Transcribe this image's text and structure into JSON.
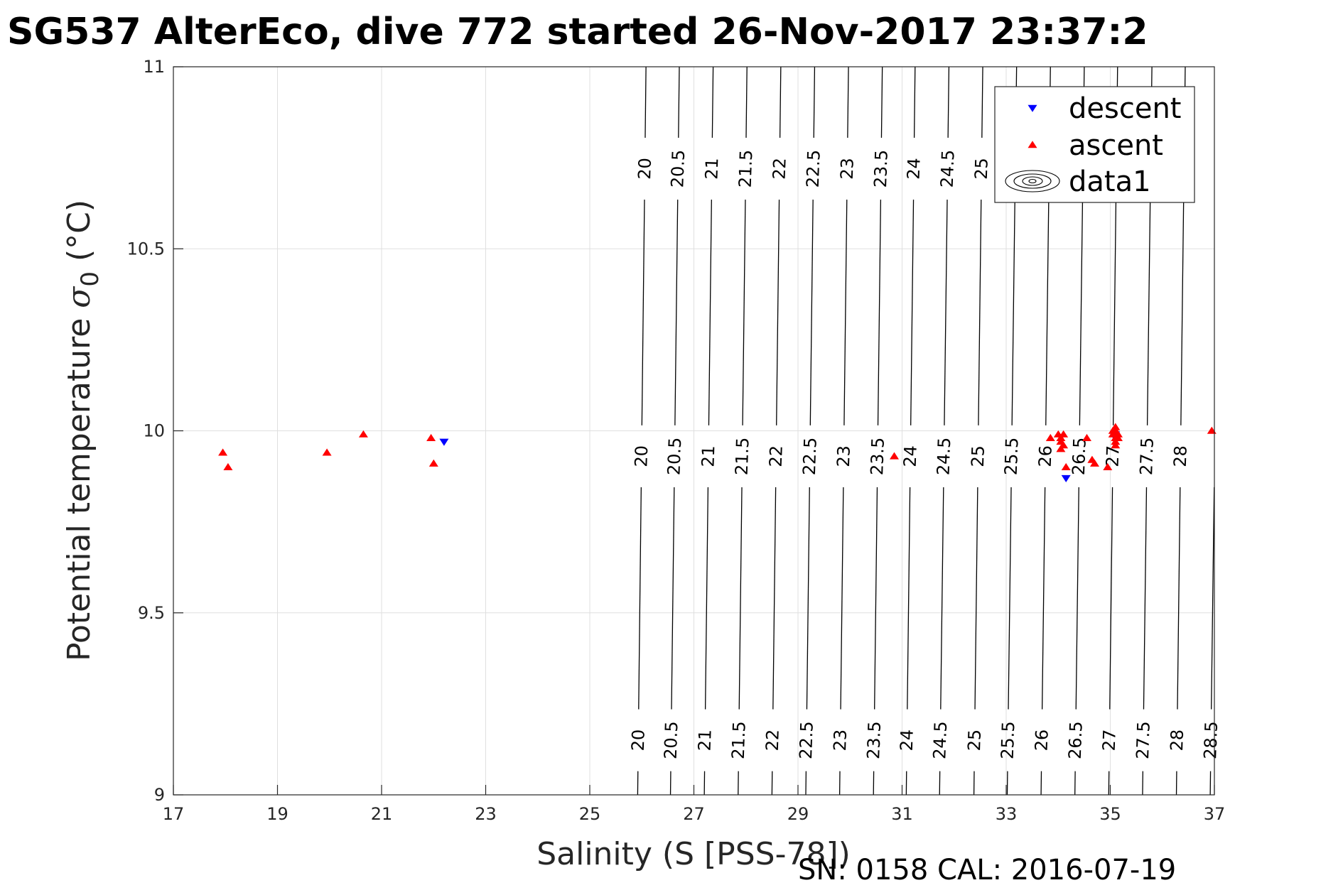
{
  "chart_data": {
    "type": "scatter",
    "title": "SG537 AlterEco, dive 772 started 26-Nov-2017 23:37:2",
    "xlabel": "Salinity (S [PSS-78])",
    "ylabel_main": "Potential temperature ",
    "ylabel_symbol": "σ",
    "ylabel_subscript": "0",
    "ylabel_unit": " (°C)",
    "footer": "SN: 0158  CAL: 2016-07-19",
    "xlim": [
      17,
      37
    ],
    "ylim": [
      9,
      11
    ],
    "x_ticks": [
      17,
      19,
      21,
      23,
      25,
      27,
      29,
      31,
      33,
      35,
      37
    ],
    "x_tick_labels": [
      "17",
      "19",
      "21",
      "23",
      "25",
      "27",
      "29",
      "31",
      "33",
      "35",
      "37"
    ],
    "y_ticks": [
      9,
      9.5,
      10,
      10.5,
      11
    ],
    "y_tick_labels": [
      "9",
      "9.5",
      "10",
      "10.5",
      "11"
    ],
    "grid": true,
    "legend_position": "top-right",
    "legend": [
      {
        "label": "descent",
        "marker": "triangle-down",
        "color": "#0000ff"
      },
      {
        "label": "ascent",
        "marker": "triangle-up",
        "color": "#ff0000"
      },
      {
        "label": "data1",
        "marker": "contour",
        "color": "#000000"
      }
    ],
    "series": [
      {
        "name": "descent",
        "color": "#0000ff",
        "marker": "triangle-down",
        "points": [
          [
            22.2,
            9.97
          ],
          [
            34.15,
            9.87
          ],
          [
            35.1,
            9.99
          ],
          [
            35.1,
            9.98
          ]
        ]
      },
      {
        "name": "ascent",
        "color": "#ff0000",
        "marker": "triangle-up",
        "points": [
          [
            17.95,
            9.94
          ],
          [
            18.05,
            9.9
          ],
          [
            19.95,
            9.94
          ],
          [
            20.65,
            9.99
          ],
          [
            21.95,
            9.98
          ],
          [
            22.0,
            9.91
          ],
          [
            30.85,
            9.93
          ],
          [
            33.85,
            9.98
          ],
          [
            34.0,
            9.99
          ],
          [
            34.05,
            9.98
          ],
          [
            34.05,
            9.97
          ],
          [
            34.1,
            9.96
          ],
          [
            34.05,
            9.95
          ],
          [
            34.1,
            9.99
          ],
          [
            34.15,
            9.9
          ],
          [
            34.55,
            9.98
          ],
          [
            34.65,
            9.92
          ],
          [
            34.7,
            9.91
          ],
          [
            34.95,
            9.9
          ],
          [
            35.05,
            10.0
          ],
          [
            35.05,
            9.99
          ],
          [
            35.1,
            10.01
          ],
          [
            35.1,
            10.0
          ],
          [
            35.1,
            9.98
          ],
          [
            35.1,
            9.97
          ],
          [
            35.1,
            9.96
          ],
          [
            35.15,
            9.99
          ],
          [
            35.15,
            9.98
          ],
          [
            36.95,
            10.0
          ]
        ]
      }
    ],
    "contours": {
      "name": "data1",
      "levels": [
        {
          "label": "20",
          "x_bottom": 25.92,
          "x_top": 26.08
        },
        {
          "label": "20.5",
          "x_bottom": 26.55,
          "x_top": 26.72
        },
        {
          "label": "21",
          "x_bottom": 27.2,
          "x_top": 27.37
        },
        {
          "label": "21.5",
          "x_bottom": 27.85,
          "x_top": 28.02
        },
        {
          "label": "22",
          "x_bottom": 28.5,
          "x_top": 28.67
        },
        {
          "label": "22.5",
          "x_bottom": 29.15,
          "x_top": 29.32
        },
        {
          "label": "23",
          "x_bottom": 29.8,
          "x_top": 29.97
        },
        {
          "label": "23.5",
          "x_bottom": 30.45,
          "x_top": 30.62
        },
        {
          "label": "24",
          "x_bottom": 31.08,
          "x_top": 31.25
        },
        {
          "label": "24.5",
          "x_bottom": 31.72,
          "x_top": 31.9
        },
        {
          "label": "25",
          "x_bottom": 32.38,
          "x_top": 32.55
        },
        {
          "label": "25.5",
          "x_bottom": 33.02,
          "x_top": 33.2
        },
        {
          "label": "26",
          "x_bottom": 33.67,
          "x_top": 33.85
        },
        {
          "label": "26.5",
          "x_bottom": 34.32,
          "x_top": 34.5
        },
        {
          "label": "27",
          "x_bottom": 34.97,
          "x_top": 35.14
        },
        {
          "label": "27.5",
          "x_bottom": 35.62,
          "x_top": 35.8
        },
        {
          "label": "28",
          "x_bottom": 36.27,
          "x_top": 36.44
        },
        {
          "label": "28.5",
          "x_bottom": 36.92,
          "x_top": 37.1
        }
      ],
      "label_rows_y": [
        10.72,
        9.93,
        9.15
      ]
    }
  }
}
